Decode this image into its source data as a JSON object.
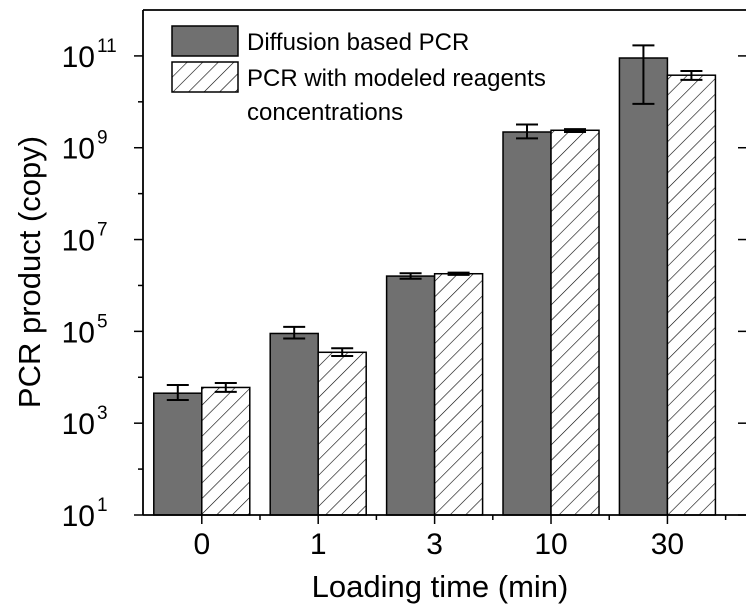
{
  "chart_data": {
    "type": "bar",
    "title": "",
    "xlabel": "Loading time (min)",
    "ylabel": "PCR product (copy)",
    "y_scale": "log",
    "ylim": [
      10,
      1000000000000.0
    ],
    "y_ticks": [
      {
        "value": 10,
        "base": "10",
        "exp": "1"
      },
      {
        "value": 1000,
        "base": "10",
        "exp": "3"
      },
      {
        "value": 100000,
        "base": "10",
        "exp": "5"
      },
      {
        "value": 10000000,
        "base": "10",
        "exp": "7"
      },
      {
        "value": 1000000000,
        "base": "10",
        "exp": "9"
      },
      {
        "value": 100000000000,
        "base": "10",
        "exp": "11"
      }
    ],
    "categories": [
      "0",
      "1",
      "3",
      "10",
      "30"
    ],
    "series": [
      {
        "name": "Diffusion based PCR",
        "fill": "#707070",
        "pattern": "solid",
        "values": [
          4500,
          90000,
          1600000,
          2200000000,
          90000000000
        ],
        "err_low": [
          3200,
          70000,
          1400000,
          1600000000,
          9000000000
        ],
        "err_high": [
          6800,
          125000,
          1850000,
          3200000000,
          170000000000
        ]
      },
      {
        "name": "PCR with modeled reagents concentrations",
        "legend_lines": [
          "PCR with modeled reagents",
          "concentrations"
        ],
        "fill": "#ffffff",
        "pattern": "hatch",
        "values": [
          6000,
          35000,
          1800000,
          2400000000,
          38000000000
        ],
        "err_low": [
          4800,
          29000,
          1700000,
          2200000000,
          30000000000
        ],
        "err_high": [
          7500,
          43000,
          1900000,
          2550000000,
          47000000000
        ]
      }
    ],
    "legend_position": "top-left",
    "grid": false
  }
}
